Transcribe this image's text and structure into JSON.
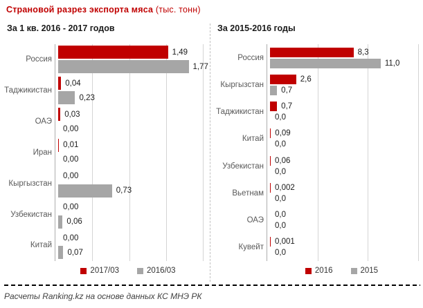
{
  "page": {
    "title": "Страновой разрез экспорта мяса",
    "title_unit": "(тыс. тонн)",
    "footer": "Расчеты Ranking.kz на основе данных КС МНЭ РК"
  },
  "colors": {
    "accent_red": "#C00000",
    "series_gray": "#A6A6A6",
    "gridline": "#D4D4D4",
    "axis": "#ACACAC",
    "divider": "#BFBFBF"
  },
  "chart_data": [
    {
      "type": "bar",
      "orientation": "horizontal",
      "title": "За 1 кв. 2016 - 2017 годов",
      "categories": [
        "Россия",
        "Таджикистан",
        "ОАЭ",
        "Иран",
        "Кыргызстан",
        "Узбекистан",
        "Китай"
      ],
      "series": [
        {
          "name": "2017/03",
          "color": "#C00000",
          "values": [
            1.49,
            0.04,
            0.03,
            0.01,
            0.0,
            0.0,
            0.0
          ],
          "labels": [
            "1,49",
            "0,04",
            "0,03",
            "0,01",
            "0,00",
            "0,00",
            "0,00"
          ]
        },
        {
          "name": "2016/03",
          "color": "#A6A6A6",
          "values": [
            1.77,
            0.23,
            0.0,
            0.0,
            0.73,
            0.06,
            0.07
          ],
          "labels": [
            "1,77",
            "0,23",
            "0,00",
            "0,00",
            "0,73",
            "0,06",
            "0,07"
          ]
        }
      ],
      "xlim": [
        0,
        2
      ],
      "grid_step": 0.5,
      "grid": true,
      "legend_position": "bottom"
    },
    {
      "type": "bar",
      "orientation": "horizontal",
      "title": "За 2015-2016 годы",
      "categories": [
        "Россия",
        "Кыргызстан",
        "Таджикистан",
        "Китай",
        "Узбекистан",
        "Вьетнам",
        "ОАЭ",
        "Кувейт"
      ],
      "series": [
        {
          "name": "2016",
          "color": "#C00000",
          "values": [
            8.3,
            2.6,
            0.7,
            0.09,
            0.06,
            0.002,
            0.0,
            0.001
          ],
          "labels": [
            "8,3",
            "2,6",
            "0,7",
            "0,09",
            "0,06",
            "0,002",
            "0,0",
            "0,001"
          ]
        },
        {
          "name": "2015",
          "color": "#A6A6A6",
          "values": [
            11.0,
            0.7,
            0.0,
            0.0,
            0.0,
            0.0,
            0.0,
            0.0
          ],
          "labels": [
            "11,0",
            "0,7",
            "0,0",
            "0,0",
            "0,0",
            "0,0",
            "0,0",
            "0,0"
          ]
        }
      ],
      "xlim": [
        0,
        15
      ],
      "grid_step": 5,
      "grid": true,
      "legend_position": "bottom"
    }
  ]
}
